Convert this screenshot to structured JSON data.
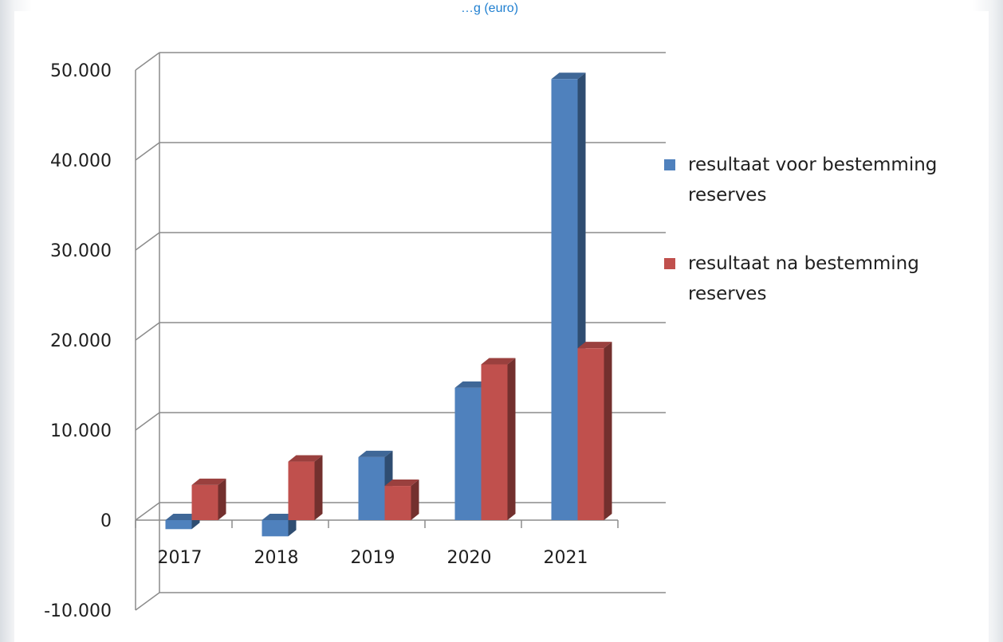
{
  "top_caption": "…g (euro)",
  "chart_data": {
    "type": "bar",
    "title": "",
    "xlabel": "",
    "ylabel": "",
    "categories": [
      "2017",
      "2018",
      "2019",
      "2020",
      "2021"
    ],
    "ylim": [
      -10000,
      50000
    ],
    "yticks": [
      -10000,
      0,
      10000,
      20000,
      30000,
      40000,
      50000
    ],
    "ytick_labels": [
      "-10.000",
      "0",
      "10.000",
      "20.000",
      "30.000",
      "40.000",
      "50.000"
    ],
    "grid": true,
    "legend_position": "right",
    "three_d": true,
    "series": [
      {
        "name": "resultaat voor bestemming reserves",
        "legend_lines": [
          "resultaat voor bestemming",
          "reserves"
        ],
        "color": "#4f81bd",
        "values": [
          -1000,
          -1800,
          7000,
          14700,
          49000
        ]
      },
      {
        "name": "resultaat na bestemming reserves",
        "legend_lines": [
          "resultaat na bestemming",
          "reserves"
        ],
        "color": "#c0504d",
        "values": [
          3900,
          6500,
          3800,
          17300,
          19100
        ]
      }
    ]
  }
}
